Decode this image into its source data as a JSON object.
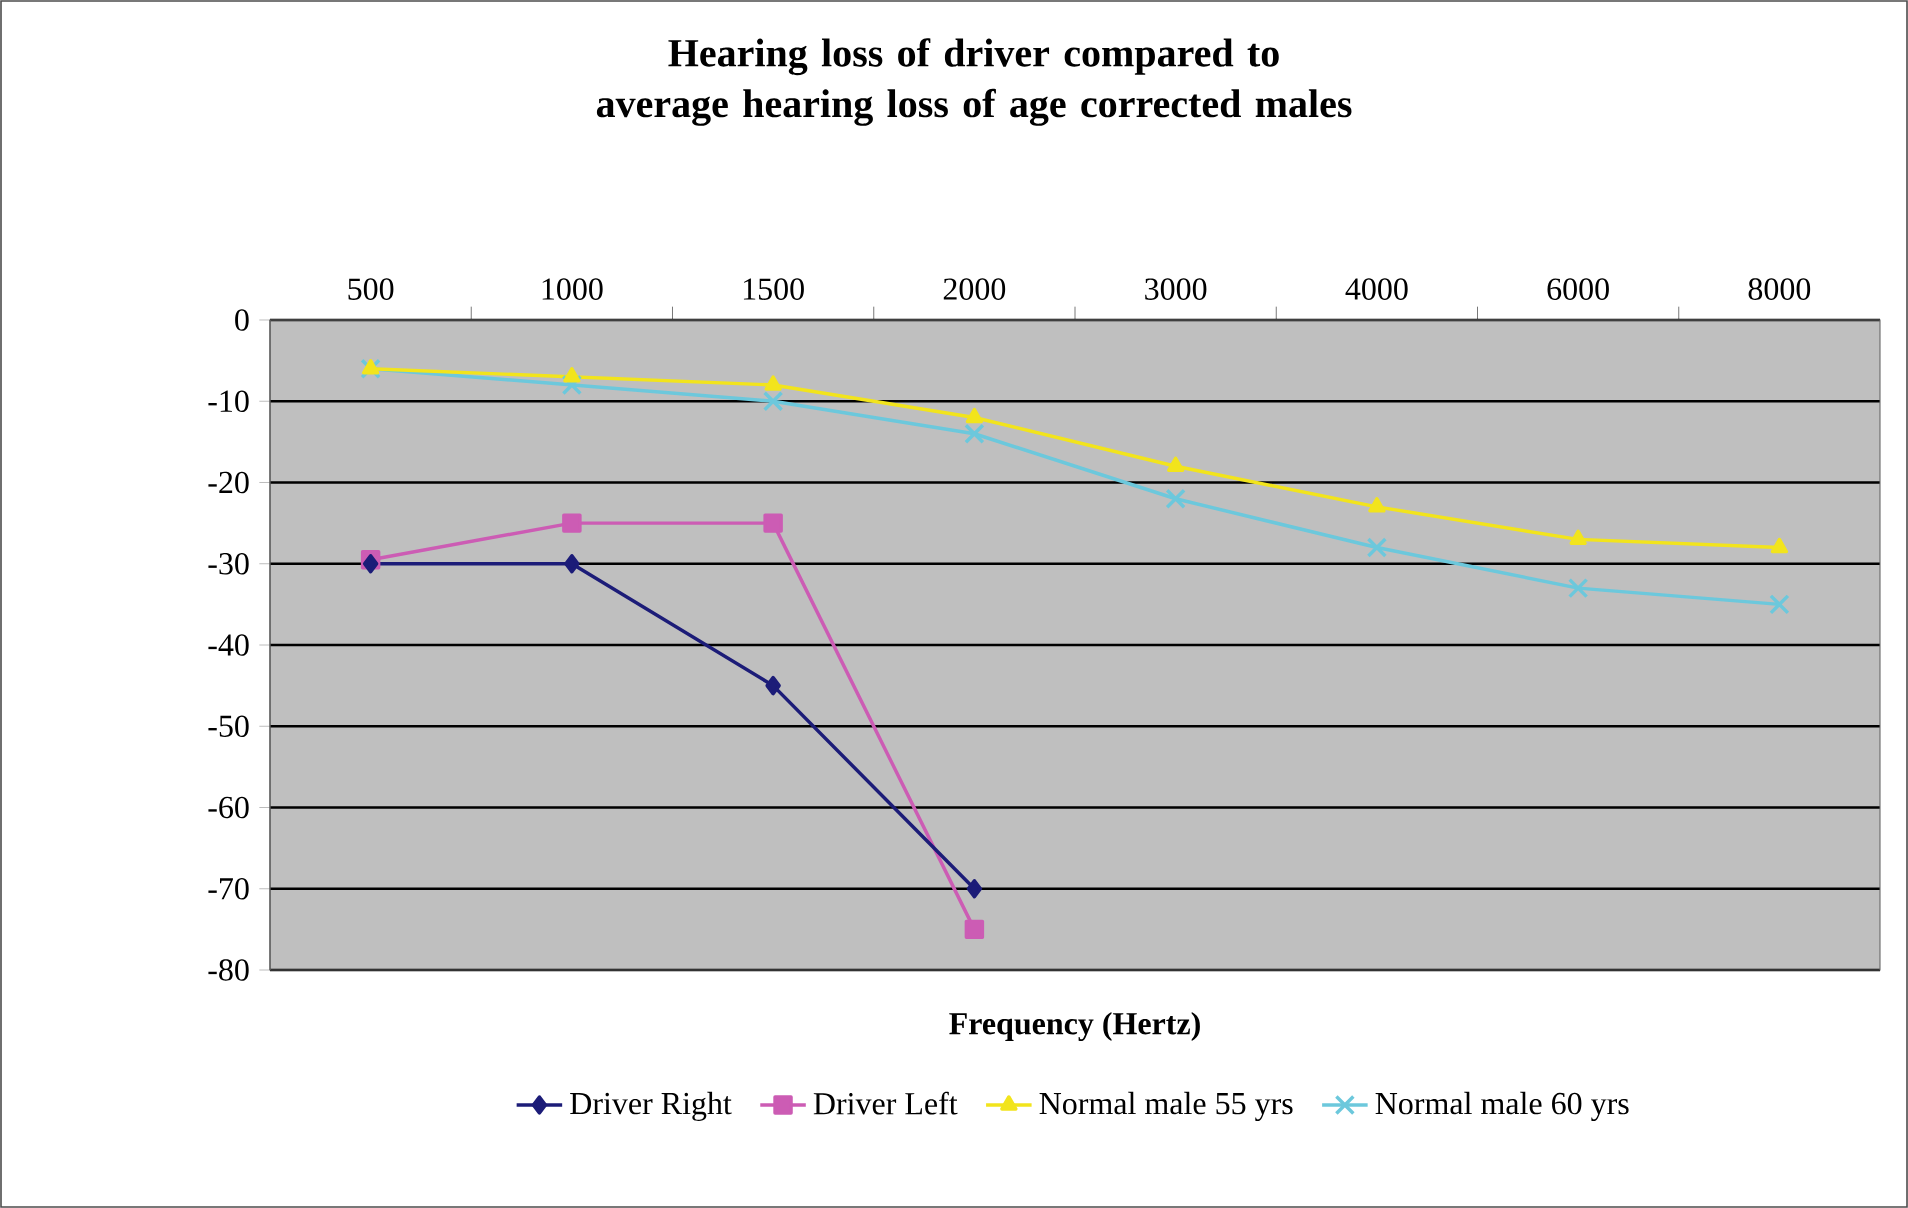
{
  "chart_data": {
    "type": "line",
    "title": "Hearing loss of driver compared to average hearing loss of age corrected males",
    "xlabel": "Frequency (Hertz)",
    "categories": [
      "500",
      "1000",
      "1500",
      "2000",
      "3000",
      "4000",
      "6000",
      "8000"
    ],
    "series": [
      {
        "name": "Driver Right",
        "color": "#1c1c78",
        "marker": "diamond",
        "values": [
          -30,
          -30,
          -45,
          -70,
          null,
          null,
          null,
          null
        ]
      },
      {
        "name": "Driver Left",
        "color": "#cc5cb4",
        "marker": "square",
        "values": [
          -29.5,
          -25,
          -25,
          -75,
          null,
          null,
          null,
          null
        ]
      },
      {
        "name": "Normal male 55 yrs",
        "color": "#f2e41c",
        "marker": "triangle",
        "values": [
          -6,
          -7,
          -8,
          -12,
          -18,
          -23,
          -27,
          -28
        ]
      },
      {
        "name": "Normal male 60 yrs",
        "color": "#6cc8dc",
        "marker": "cross",
        "values": [
          -6,
          -8,
          -10,
          -14,
          -22,
          -28,
          -33,
          -35
        ]
      }
    ],
    "ylim": [
      -80,
      0
    ],
    "yticks": [
      -80,
      -70,
      -60,
      -50,
      -40,
      -30,
      -20,
      -10,
      0
    ],
    "grid": "y",
    "legend": "bottom"
  }
}
